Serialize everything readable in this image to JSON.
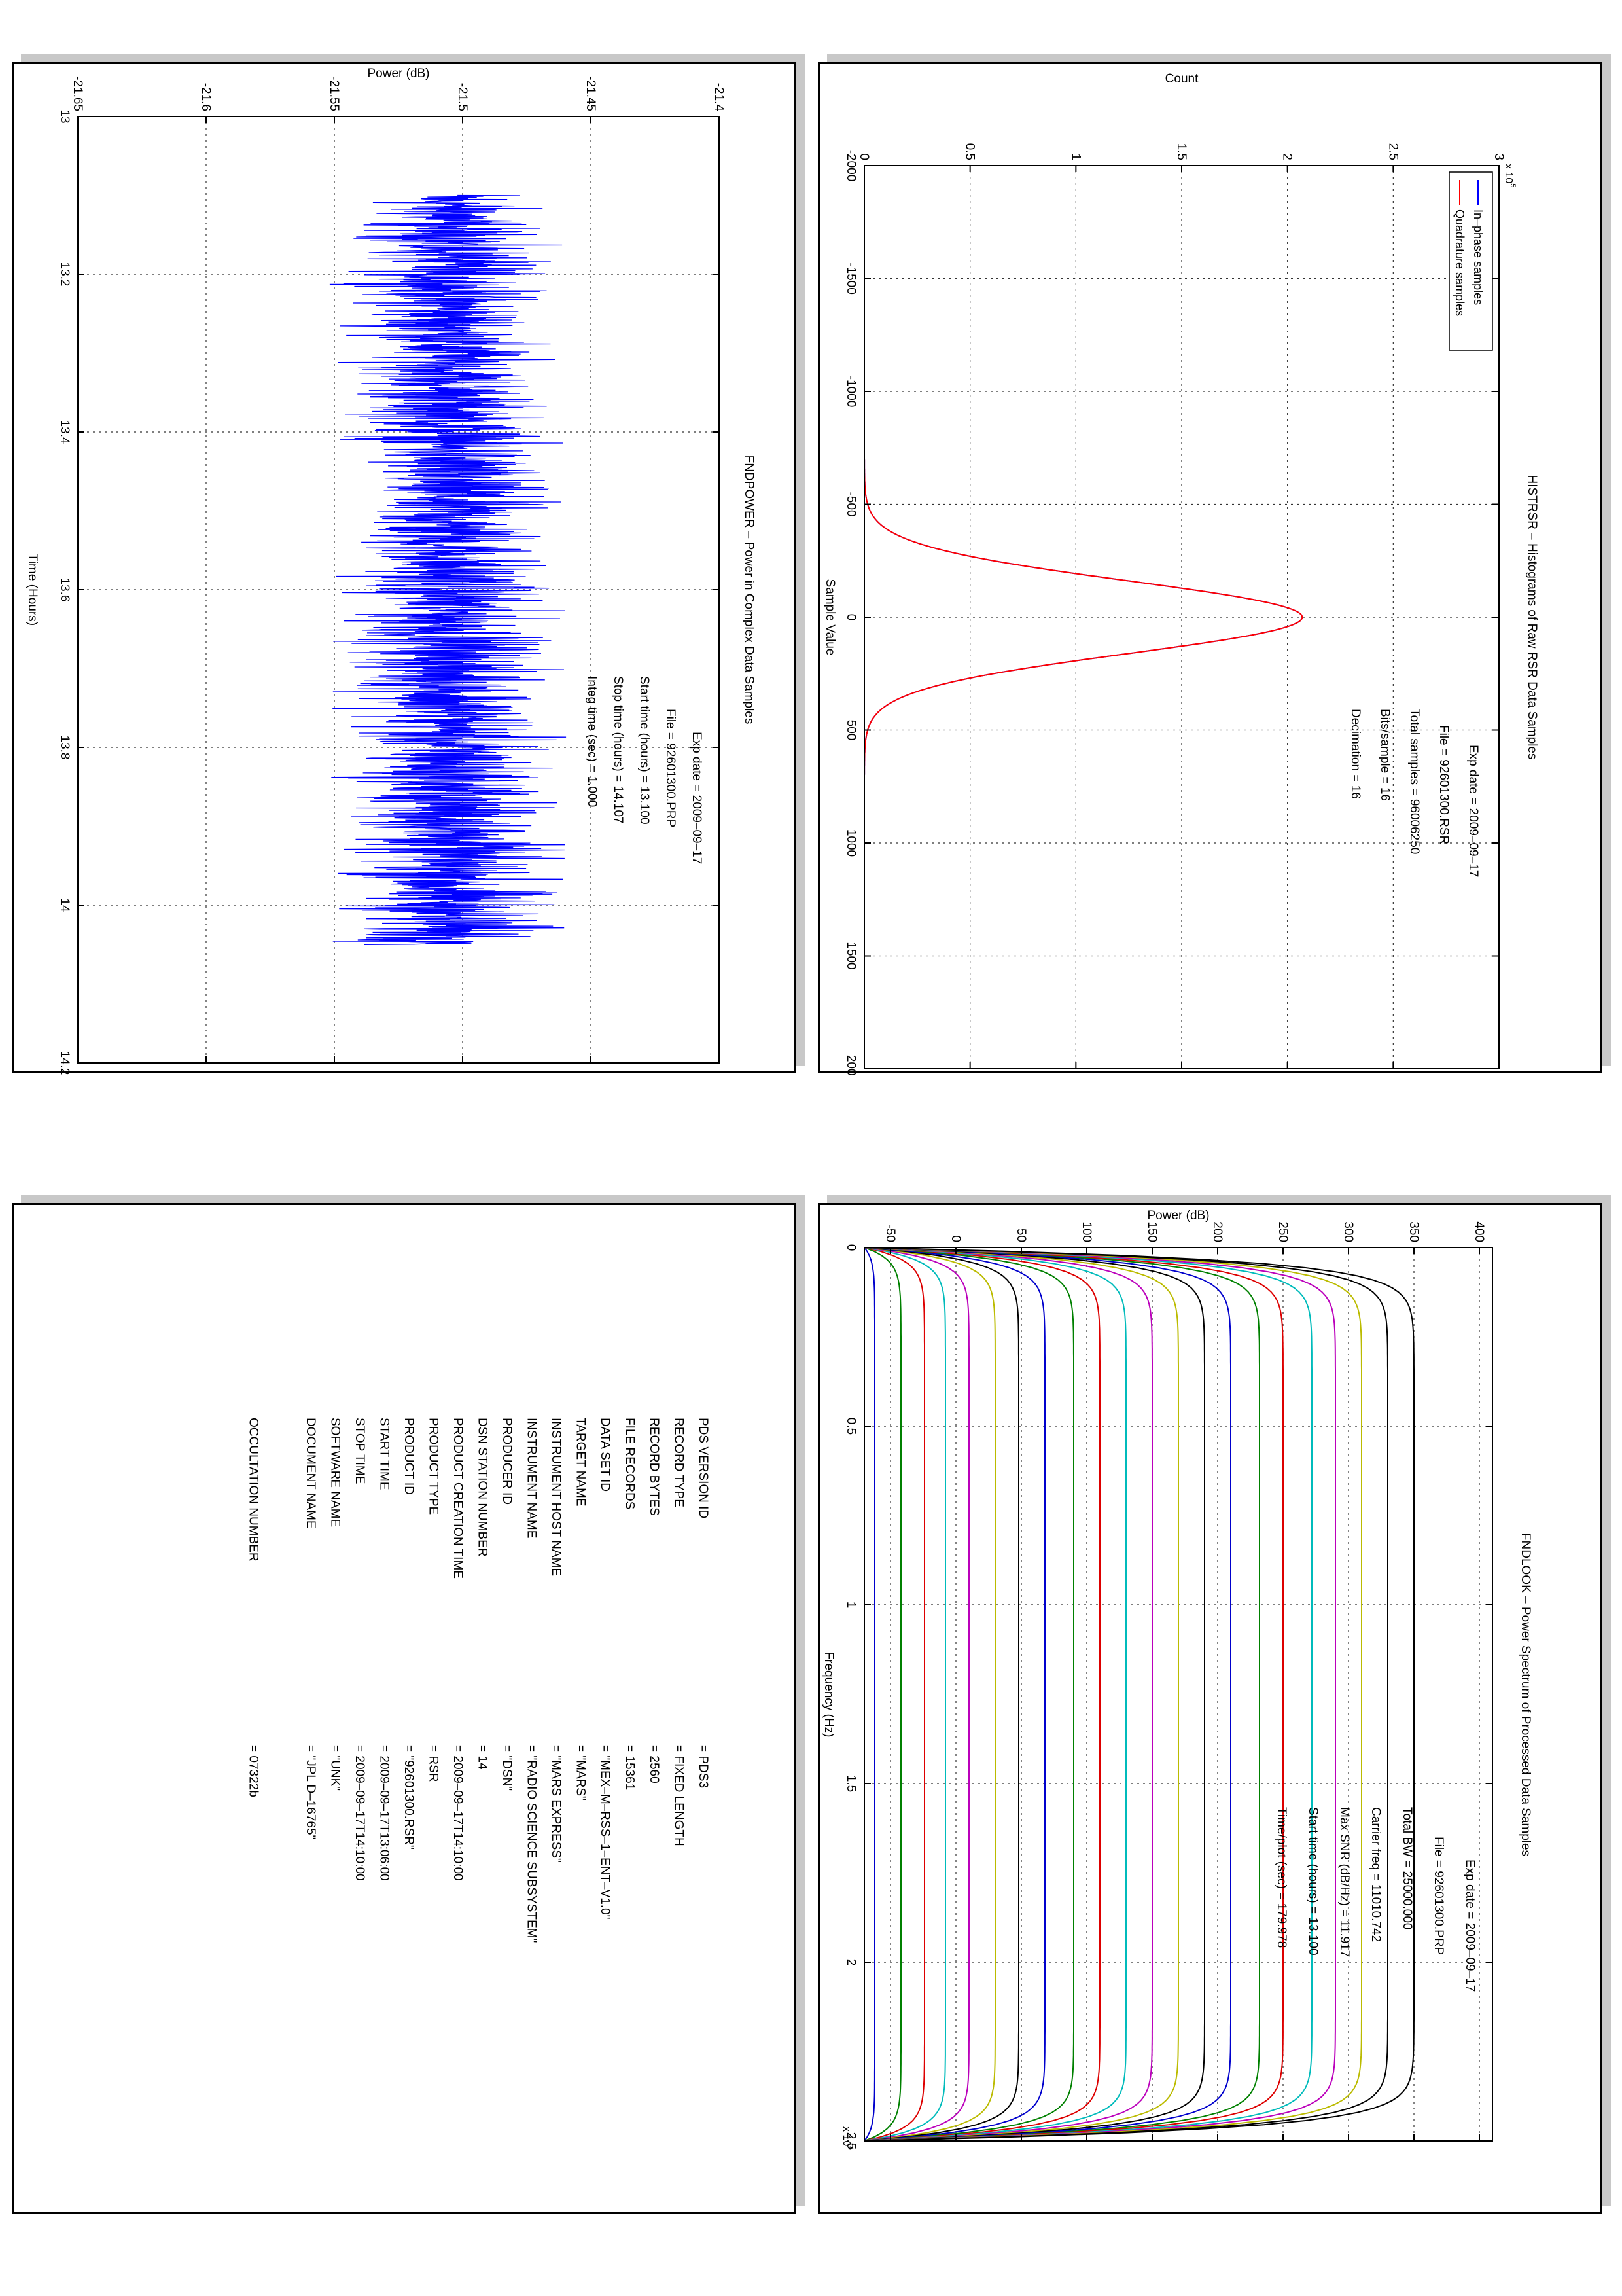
{
  "chart_data": [
    {
      "id": "fndpower",
      "type": "line",
      "title": "FNDPOWER – Power in Complex Data Samples",
      "xlabel": "Time (Hours)",
      "ylabel": "Power (dB)",
      "xlim": [
        13,
        14.2
      ],
      "ylim": [
        -21.65,
        -21.4
      ],
      "xticks": [
        "13",
        "13.2",
        "13.4",
        "13.6",
        "13.8",
        "14",
        "14.2"
      ],
      "yticks": [
        "-21.65",
        "-21.6",
        "-21.55",
        "-21.5",
        "-21.45",
        "-21.4"
      ],
      "grid": true,
      "series": [
        {
          "color": "#0000ff",
          "x_range": [
            13.1,
            14.05
          ],
          "y_center": -21.505,
          "y_spread": 0.06
        }
      ],
      "annotations": [
        "Exp date = 2009–09–17",
        "File = 92601300.PRP",
        "Start time (hours) = 13.100",
        "Stop time (hours) = 14.107",
        "Integ time (sec) = 1.000"
      ]
    },
    {
      "id": "histrsr",
      "type": "line",
      "title": "HISTRSR – Histograms of Raw RSR Data Samples",
      "xlabel": "Sample Value",
      "ylabel": "Count",
      "multiplier": "x 10",
      "multiplier_exp": "5",
      "xlim": [
        -2000,
        2000
      ],
      "ylim": [
        0,
        3
      ],
      "xticks": [
        "-2000",
        "-1500",
        "-1000",
        "-500",
        "0",
        "500",
        "1000",
        "1500",
        "2000"
      ],
      "yticks": [
        "0",
        "0.5",
        "1",
        "1.5",
        "2",
        "2.5",
        "3"
      ],
      "grid": true,
      "legend_position": "top-left",
      "series": [
        {
          "name": "In–phase samples",
          "color": "#0000ff",
          "peak": 2.07,
          "mean": 0,
          "sigma": 160
        },
        {
          "name": "Quadrature samples",
          "color": "#ff0000",
          "peak": 2.07,
          "mean": 0,
          "sigma": 160
        }
      ],
      "annotations": [
        "Exp date = 2009–09–17",
        "File = 92601300.RSR",
        "Total samples = 96006250",
        "Bits/sample = 16",
        "Decimation = 16"
      ]
    },
    {
      "id": "fndlook",
      "type": "line",
      "title": "FNDLOOK – Power Spectrum of Processed Data Samples",
      "xlabel": "Frequency (Hz)",
      "ylabel": "Power (dB)",
      "multiplier": "x 10",
      "multiplier_exp": "4",
      "xlim": [
        0,
        2.5
      ],
      "ylim": [
        -70,
        410
      ],
      "xticks": [
        "0",
        "0.5",
        "1",
        "1.5",
        "2",
        "2.5"
      ],
      "yticks": [
        "-50",
        "0",
        "50",
        "100",
        "150",
        "200",
        "250",
        "300",
        "350",
        "400"
      ],
      "grid": true,
      "series_levels": [
        -62,
        -42,
        -24,
        -8,
        10,
        30,
        48,
        68,
        90,
        110,
        130,
        150,
        170,
        190,
        210,
        232,
        250,
        272,
        290,
        310,
        330,
        350
      ],
      "series_colors": [
        "#0000cc",
        "#008000",
        "#dd0000",
        "#00bbbb",
        "#bb00bb",
        "#bbbb00",
        "#000000",
        "#0000cc",
        "#008000",
        "#dd0000",
        "#00bbbb",
        "#bb00bb",
        "#bbbb00",
        "#000000",
        "#0000cc",
        "#008000",
        "#dd0000",
        "#00bbbb",
        "#bb00bb",
        "#bbbb00",
        "#000000",
        "#000000"
      ],
      "annotations": [
        "Exp date = 2009–09–17",
        "File = 92601300.PRP",
        "Total BW = 25000.000",
        "Carrier freq = 11010.742",
        "Max SNR (dB/Hz) = 11.917",
        "Start time (hours) = 13.100",
        "Time/plot (sec) = 179.978"
      ]
    }
  ],
  "label_table": {
    "rows": [
      {
        "key": "PDS VERSION ID",
        "value": "= PDS3"
      },
      {
        "key": "RECORD TYPE",
        "value": "= FIXED LENGTH"
      },
      {
        "key": "RECORD BYTES",
        "value": "= 2560"
      },
      {
        "key": "FILE RECORDS",
        "value": "= 15361"
      },
      {
        "key": "DATA SET ID",
        "value": "= \"MEX–M–RSS–1–ENT–V1.0\""
      },
      {
        "key": "TARGET NAME",
        "value": "= \"MARS\""
      },
      {
        "key": "INSTRUMENT HOST NAME",
        "value": "= \"MARS EXPRESS\""
      },
      {
        "key": "INSTRUMENT NAME",
        "value": "= \"RADIO SCIENCE SUBSYSTEM\""
      },
      {
        "key": "PRODUCER ID",
        "value": "= \"DSN\""
      },
      {
        "key": "DSN STATION NUMBER",
        "value": "= 14"
      },
      {
        "key": "PRODUCT CREATION TIME",
        "value": "= 2009–09–17T14:10:00"
      },
      {
        "key": "PRODUCT TYPE",
        "value": "= RSR"
      },
      {
        "key": "PRODUCT ID",
        "value": "= \"92601300.RSR\""
      },
      {
        "key": "START TIME",
        "value": "= 2009–09–17T13:06:00"
      },
      {
        "key": "STOP TIME",
        "value": "= 2009–09–17T14:10:00"
      },
      {
        "key": "SOFTWARE NAME",
        "value": "= \"UNK\""
      },
      {
        "key": "DOCUMENT NAME",
        "value": "= \"JPL D–16765\""
      }
    ],
    "occultation": {
      "key": "OCCULTATION NUMBER",
      "value": "= 07322b"
    }
  }
}
